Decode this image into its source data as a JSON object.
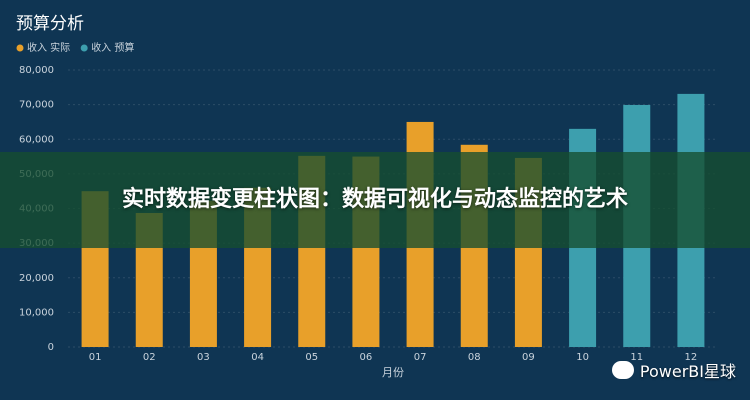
{
  "chart_data": {
    "type": "bar",
    "title": "预算分析",
    "x_label": "月份",
    "categories": [
      "01",
      "02",
      "03",
      "04",
      "05",
      "06",
      "07",
      "08",
      "09",
      "10",
      "11",
      "12"
    ],
    "series": [
      {
        "name": "收入 实际",
        "color": "#e8a02a",
        "values": [
          45000,
          38700,
          42200,
          46000,
          55200,
          55000,
          65000,
          58400,
          54600,
          null,
          null,
          null
        ]
      },
      {
        "name": "收入 预算",
        "color": "#3d9fae",
        "values": [
          null,
          null,
          null,
          null,
          null,
          null,
          null,
          null,
          null,
          63000,
          69900,
          73100
        ]
      }
    ],
    "ylim": [
      0,
      80000
    ],
    "yticks": [
      0,
      {
        "value": 10000,
        "label": "10,000"
      },
      {
        "value": 20000,
        "label": "20,000"
      },
      {
        "value": 30000,
        "label": "30,000"
      },
      {
        "value": 40000,
        "label": "40,000"
      },
      {
        "value": 50000,
        "label": "50,000"
      },
      {
        "value": 60000,
        "label": "60,000"
      },
      {
        "value": 70000,
        "label": "70,000"
      },
      {
        "value": 80000,
        "label": "80,000"
      }
    ],
    "grid": true
  },
  "overlay": {
    "headline": "实时数据变更柱状图：数据可视化与动态监控的艺术",
    "watermark": "PowerBI星球"
  }
}
